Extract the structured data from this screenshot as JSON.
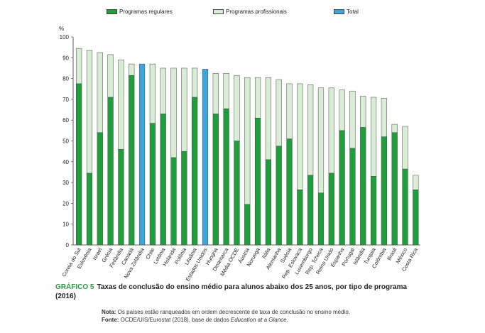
{
  "colors": {
    "regular": "#1f9e3c",
    "professional": "#d9ecd6",
    "total": "#3da7d9",
    "border": "#444444"
  },
  "legend": {
    "regular": "Programas regulares",
    "professional": "Programas profissionais",
    "total": "Total"
  },
  "caption": {
    "label": "GRÁFICO 5",
    "text": "Taxas de conclusão do ensino médio para alunos abaixo dos 25 anos, por tipo de programa (2016)"
  },
  "note": {
    "note_label": "Nota:",
    "note_text": "Os países estão ranqueados em ordem decrescente de taxa de conclusão no ensino médio.",
    "source_label": "Fonte:",
    "source_text": "OCDE/UIS/Eurostat (2018), base de dados ",
    "source_italic": "Education at a Glance",
    "source_end": "."
  },
  "chart_data": {
    "type": "bar",
    "stacked": true,
    "ylabel": "%",
    "ylim": [
      0,
      100
    ],
    "yticks": [
      0,
      10,
      20,
      30,
      40,
      50,
      60,
      70,
      80,
      90,
      100
    ],
    "grid": false,
    "legend_position": "top",
    "categories": [
      "Coreia do Sul",
      "Eslovênia",
      "Israel",
      "Grécia",
      "Finlândia",
      "Canadá",
      "Nova Zelândia",
      "Chile",
      "Letônia",
      "Holanda",
      "Polônia",
      "Lituânia",
      "Estados Unidos",
      "Hungria",
      "Dinamarca",
      "Média OCDE",
      "Áustria",
      "Noruega",
      "Itália",
      "Alemanha",
      "Suécia",
      "Rep. Eslovaca",
      "Luxemburgo",
      "Rep. Tcheca",
      "Reino Unido",
      "Espanha",
      "Portugal",
      "Islândia",
      "Turquia",
      "Colômbia",
      "Brasil",
      "México",
      "Costa Rica"
    ],
    "series": [
      {
        "name": "Programas regulares",
        "values": [
          77.5,
          34.5,
          54,
          71,
          46,
          81.5,
          null,
          58.5,
          63,
          42,
          45,
          71,
          null,
          63,
          65.5,
          50,
          19.5,
          61,
          41,
          47.5,
          51,
          26.5,
          33.5,
          25,
          34.5,
          55,
          46.5,
          56.5,
          33,
          52,
          54,
          36.5,
          26.5
        ]
      },
      {
        "name": "Programas profissionais",
        "values": [
          17,
          59,
          38.5,
          20.5,
          43,
          5.5,
          null,
          28.5,
          22,
          43,
          40,
          14,
          null,
          19.5,
          17,
          31.5,
          61,
          19.5,
          39.5,
          32,
          26.5,
          51,
          43.5,
          50.5,
          41,
          19.5,
          27.5,
          15,
          38,
          18.5,
          4,
          20.5,
          7
        ]
      },
      {
        "name": "Total",
        "values": [
          null,
          null,
          null,
          null,
          null,
          null,
          87,
          null,
          null,
          null,
          null,
          null,
          84.5,
          null,
          null,
          null,
          null,
          null,
          null,
          null,
          null,
          null,
          null,
          null,
          null,
          null,
          null,
          null,
          null,
          null,
          null,
          null,
          null
        ]
      }
    ]
  }
}
